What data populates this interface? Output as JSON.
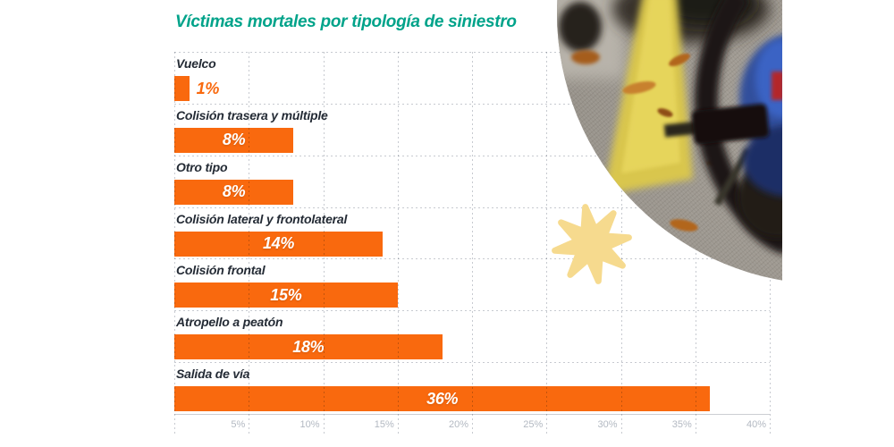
{
  "title": {
    "text": "Víctimas mortales por tipología de siniestro",
    "color": "#00a38a"
  },
  "chart_data": {
    "type": "bar",
    "orientation": "horizontal",
    "title": "Víctimas mortales por tipología de siniestro",
    "categories": [
      "Vuelco",
      "Colisión trasera y múltiple",
      "Otro tipo",
      "Colisión lateral y frontolateral",
      "Colisión frontal",
      "Atropello a peatón",
      "Salida de vía"
    ],
    "values": [
      1,
      8,
      8,
      14,
      15,
      18,
      36
    ],
    "value_labels": [
      "1%",
      "8%",
      "8%",
      "14%",
      "15%",
      "18%",
      "36%"
    ],
    "x_ticks": {
      "values": [
        5,
        10,
        15,
        20,
        25,
        30,
        35,
        40
      ],
      "labels": [
        "5%",
        "10%",
        "15%",
        "20%",
        "25%",
        "30%",
        "35%",
        "40%"
      ]
    },
    "xlim": [
      0,
      40
    ],
    "xlabel": "",
    "ylabel": "",
    "legend": null,
    "grid": {
      "vertical": "dotted",
      "horizontal": "dotted row separators"
    },
    "colors": {
      "bar": "#f9690e",
      "value_label_inside": "#ffffff",
      "value_label_outside": "#f9690e",
      "category_label": "#242b35",
      "grid": "#c7cad0",
      "tick_label": "#b3b9c2",
      "axis_line": "#ccced3"
    }
  },
  "decor": {
    "star_icon": {
      "points": 8,
      "color": "#f6da8e"
    },
    "photo": {
      "name": "road-bicycle-photo",
      "shape": "circle"
    }
  }
}
